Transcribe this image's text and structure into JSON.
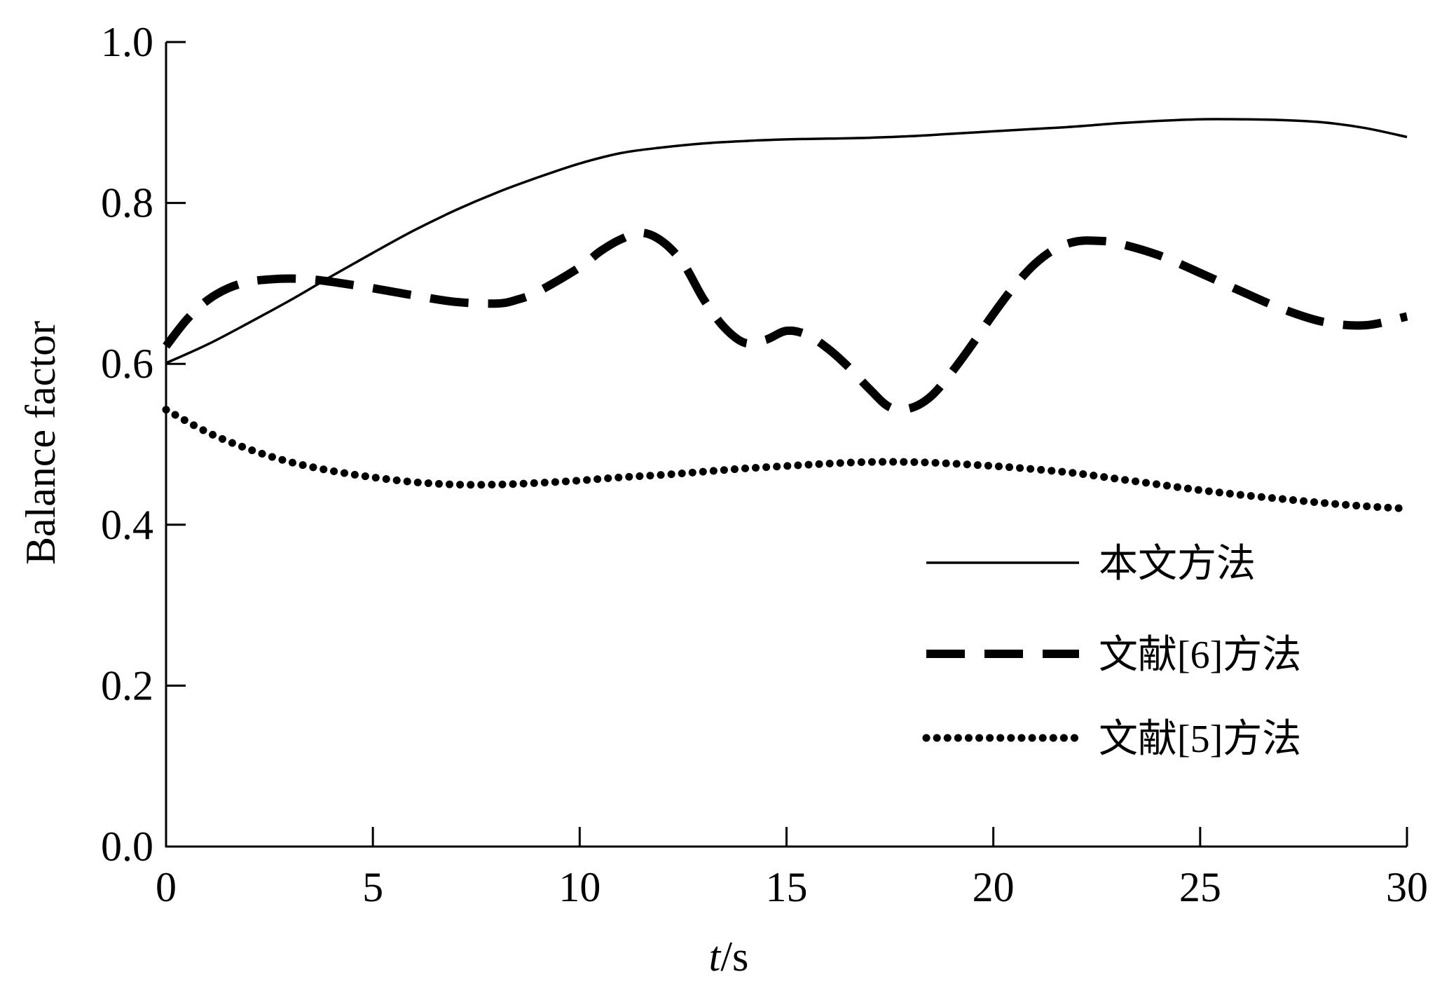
{
  "chart_data": {
    "type": "line",
    "xlabel": {
      "italic": "t",
      "rest": "/s"
    },
    "ylabel": "Balance factor",
    "xlim": [
      0,
      30
    ],
    "ylim": [
      0,
      1.0
    ],
    "xticks": [
      0,
      5,
      10,
      15,
      20,
      25,
      30
    ],
    "xtick_labels": [
      "0",
      "5",
      "10",
      "15",
      "20",
      "25",
      "30"
    ],
    "yticks": [
      0.0,
      0.2,
      0.4,
      0.6,
      0.8,
      1.0
    ],
    "ytick_labels": [
      "0.0",
      "0.2",
      "0.4",
      "0.6",
      "0.8",
      "1.0"
    ],
    "grid": false,
    "legend_position": "lower-right",
    "series": [
      {
        "name": "本文方法",
        "style": "solid",
        "color": "#000000",
        "x": [
          0,
          1,
          2,
          3,
          4,
          5,
          6,
          7,
          8,
          9,
          10,
          11,
          12,
          13,
          14,
          15,
          16,
          17,
          18,
          19,
          20,
          21,
          22,
          23,
          24,
          25,
          26,
          27,
          28,
          29,
          30
        ],
        "y": [
          0.601,
          0.624,
          0.651,
          0.679,
          0.709,
          0.738,
          0.766,
          0.791,
          0.813,
          0.832,
          0.849,
          0.862,
          0.869,
          0.874,
          0.877,
          0.879,
          0.88,
          0.881,
          0.883,
          0.886,
          0.889,
          0.892,
          0.895,
          0.899,
          0.902,
          0.904,
          0.904,
          0.903,
          0.9,
          0.893,
          0.882
        ]
      },
      {
        "name": "文献[6]方法",
        "style": "dashed",
        "color": "#000000",
        "x": [
          0,
          0.5,
          1,
          1.5,
          2,
          2.5,
          3,
          3.5,
          4,
          5,
          6,
          7,
          8,
          8.5,
          9,
          10,
          10.5,
          11,
          11.5,
          12,
          12.5,
          13,
          13.5,
          14,
          14.5,
          15,
          15.5,
          16,
          16.5,
          17,
          17.5,
          18,
          18.5,
          19,
          19.5,
          20,
          20.5,
          21,
          21.5,
          22,
          22.5,
          23,
          24,
          25,
          26,
          27,
          28,
          29,
          30
        ],
        "y": [
          0.622,
          0.655,
          0.679,
          0.694,
          0.702,
          0.705,
          0.706,
          0.705,
          0.702,
          0.694,
          0.685,
          0.677,
          0.675,
          0.68,
          0.69,
          0.72,
          0.74,
          0.755,
          0.763,
          0.752,
          0.725,
          0.68,
          0.645,
          0.626,
          0.63,
          0.641,
          0.636,
          0.619,
          0.596,
          0.569,
          0.546,
          0.545,
          0.56,
          0.59,
          0.625,
          0.662,
          0.696,
          0.724,
          0.743,
          0.752,
          0.753,
          0.75,
          0.735,
          0.713,
          0.69,
          0.668,
          0.652,
          0.648,
          0.659
        ]
      },
      {
        "name": "文献[5]方法",
        "style": "dotted",
        "color": "#000000",
        "x": [
          0,
          1,
          2,
          3,
          4,
          5,
          6,
          7,
          8,
          9,
          10,
          11,
          12,
          13,
          14,
          15,
          16,
          17,
          18,
          19,
          20,
          21,
          22,
          23,
          24,
          25,
          26,
          27,
          28,
          29,
          30
        ],
        "y": [
          0.543,
          0.515,
          0.494,
          0.478,
          0.467,
          0.459,
          0.453,
          0.45,
          0.45,
          0.452,
          0.455,
          0.459,
          0.462,
          0.466,
          0.47,
          0.473,
          0.476,
          0.478,
          0.478,
          0.476,
          0.473,
          0.469,
          0.464,
          0.457,
          0.45,
          0.443,
          0.437,
          0.432,
          0.427,
          0.423,
          0.42
        ]
      }
    ]
  }
}
